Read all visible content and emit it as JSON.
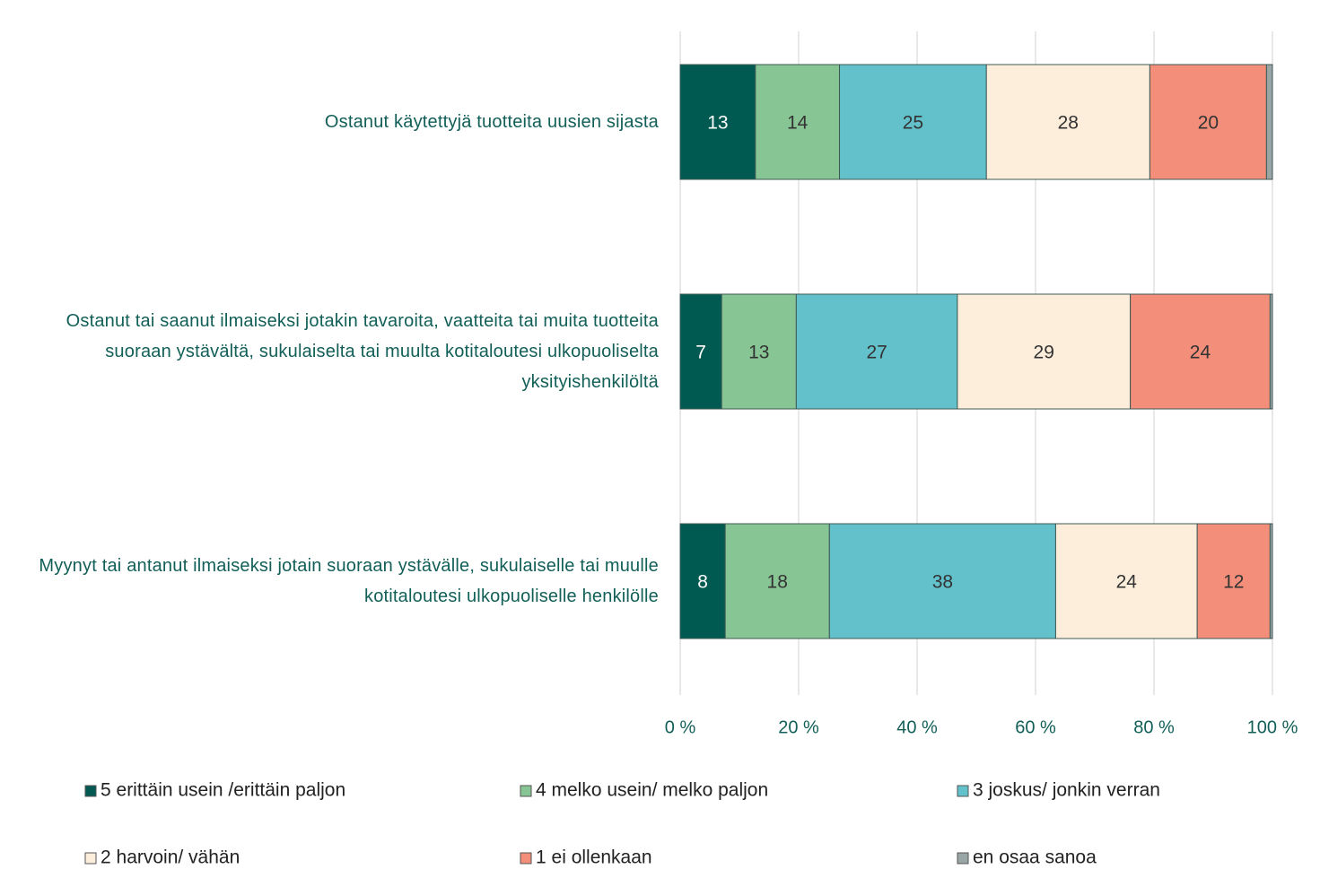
{
  "chart_data": {
    "type": "stacked_bar_horizontal",
    "categories": [
      "Ostanut käytettyjä tuotteita uusien sijasta",
      "Ostanut tai saanut ilmaiseksi jotakin tavaroita, vaatteita tai muita tuotteita suoraan ystävältä, sukulaiselta tai muulta kotitaloutesi ulkopuoliselta yksityishenkilöltä",
      "Myynyt tai antanut ilmaiseksi jotain suoraan ystävälle, sukulaiselle tai muulle kotitaloutesi ulkopuoliselle henkilölle"
    ],
    "series": [
      {
        "name": "5 erittäin usein /erittäin paljon",
        "color": "#005a52",
        "values": [
          12.7,
          7.0,
          7.6
        ],
        "value_labels": [
          "13",
          "7",
          "8"
        ]
      },
      {
        "name": "4 melko usein/ melko paljon",
        "color": "#88c595",
        "values": [
          14.2,
          12.6,
          17.6
        ],
        "value_labels": [
          "14",
          "13",
          "18"
        ]
      },
      {
        "name": "3 joskus/ jonkin verran",
        "color": "#63c1cb",
        "values": [
          24.8,
          27.2,
          38.2
        ],
        "value_labels": [
          "25",
          "27",
          "38"
        ]
      },
      {
        "name": "2 harvoin/ vähän",
        "color": "#fdeedb",
        "values": [
          27.6,
          29.2,
          23.9
        ],
        "value_labels": [
          "28",
          "29",
          "24"
        ]
      },
      {
        "name": "1 ei ollenkaan",
        "color": "#f28e79",
        "values": [
          19.7,
          23.6,
          12.3
        ],
        "value_labels": [
          "20",
          "24",
          "12"
        ]
      },
      {
        "name": "en osaa sanoa",
        "color": "#9aa6a6",
        "values": [
          1.0,
          0.4,
          0.4
        ]
      }
    ],
    "xlim": [
      0,
      100
    ],
    "xticks": [
      {
        "value": 0,
        "label": "0 %"
      },
      {
        "value": 20,
        "label": "20 %"
      },
      {
        "value": 40,
        "label": "40 %"
      },
      {
        "value": 60,
        "label": "60 %"
      },
      {
        "value": 80,
        "label": "80 %"
      },
      {
        "value": 100,
        "label": "100 %"
      }
    ],
    "grid": true,
    "legend": "bottom"
  }
}
